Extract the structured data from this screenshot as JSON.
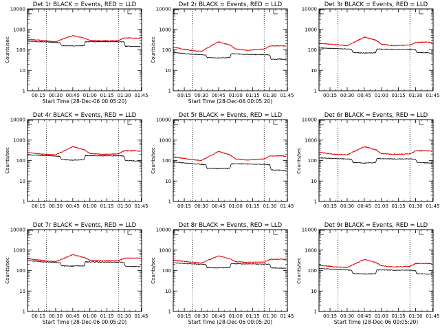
{
  "chart_data": [
    {
      "type": "line",
      "title": "Det 1r BLACK = Events, RED = LLD",
      "xlabel": "Start Time (28-Dec-06 00:05:20)",
      "ylabel": "Counts/sec",
      "ylog": true,
      "ylim": [
        1,
        10000
      ],
      "xlim_min": [
        5.33,
        105.33
      ],
      "yticks": [
        1,
        10,
        100,
        1000,
        10000
      ],
      "ytick_labels": [
        "1",
        "10",
        "100",
        "1000",
        "10000"
      ],
      "xticks_min": [
        15,
        30,
        45,
        60,
        75,
        90,
        105
      ],
      "xtick_labels": [
        "00:15",
        "00:30",
        "00:45",
        "01:00",
        "01:15",
        "01:30",
        "01:45"
      ],
      "dotted_lines_min": [
        22,
        85
      ],
      "series": [
        {
          "color": "#000000",
          "x_min": [
            5.33,
            20,
            30,
            34,
            35,
            45,
            55,
            56,
            70,
            86,
            90,
            91,
            104
          ],
          "y": [
            270,
            245,
            235,
            220,
            160,
            155,
            160,
            250,
            250,
            250,
            240,
            150,
            145
          ]
        },
        {
          "color": "#e00000",
          "x_min": [
            5.33,
            20,
            30,
            45,
            55,
            60,
            70,
            85,
            90,
            100,
            104
          ],
          "y": [
            330,
            280,
            250,
            500,
            380,
            290,
            280,
            280,
            380,
            380,
            360
          ]
        }
      ]
    },
    {
      "type": "line",
      "title": "Det 2r BLACK = Events, RED = LLD",
      "xlabel": "Start Time (28-Dec-06 00:05:20)",
      "ylabel": "Counts/sec",
      "ylog": true,
      "ylim": [
        1,
        10000
      ],
      "xlim_min": [
        5.33,
        105.33
      ],
      "yticks": [
        1,
        10,
        100,
        1000,
        10000
      ],
      "ytick_labels": [
        "1",
        "10",
        "100",
        "1000",
        "10000"
      ],
      "xticks_min": [
        15,
        30,
        45,
        60,
        75,
        90,
        105
      ],
      "xtick_labels": [
        "00:15",
        "00:30",
        "00:45",
        "01:00",
        "01:15",
        "01:30",
        "01:45"
      ],
      "dotted_lines_min": [
        22,
        85
      ],
      "series": [
        {
          "color": "#000000",
          "x_min": [
            5.33,
            20,
            30,
            34,
            35,
            45,
            55,
            56,
            70,
            86,
            90,
            91,
            104
          ],
          "y": [
            75,
            62,
            58,
            55,
            42,
            40,
            42,
            65,
            60,
            58,
            55,
            35,
            35
          ]
        },
        {
          "color": "#e00000",
          "x_min": [
            5.33,
            20,
            30,
            45,
            55,
            60,
            70,
            85,
            90,
            100,
            104
          ],
          "y": [
            135,
            95,
            85,
            250,
            170,
            110,
            95,
            110,
            155,
            160,
            155
          ]
        }
      ]
    },
    {
      "type": "line",
      "title": "Det 3r BLACK = Events, RED = LLD",
      "xlabel": "",
      "ylabel": "",
      "ylog": true,
      "ylim": [
        1,
        10000
      ],
      "xlim_min": [
        5.33,
        105.33
      ],
      "yticks": [
        1,
        10,
        100,
        1000,
        10000
      ],
      "ytick_labels": [
        "1",
        "10",
        "100",
        "1000",
        "10000"
      ],
      "xticks_min": [
        15,
        30,
        45,
        60,
        75,
        90,
        105
      ],
      "xtick_labels": [
        "00:15",
        "00:30",
        "00:45",
        "01:00",
        "01:15",
        "01:30",
        "01:45"
      ],
      "dotted_lines_min": [
        22,
        85
      ],
      "series": [
        {
          "color": "#000000",
          "x_min": [
            5.33,
            20,
            30,
            34,
            35,
            45,
            55,
            56,
            70,
            86,
            90,
            91,
            104
          ],
          "y": [
            125,
            115,
            110,
            105,
            75,
            70,
            72,
            110,
            105,
            105,
            100,
            75,
            70
          ]
        },
        {
          "color": "#e00000",
          "x_min": [
            5.33,
            20,
            30,
            45,
            55,
            60,
            70,
            85,
            90,
            100,
            104
          ],
          "y": [
            210,
            180,
            160,
            420,
            300,
            190,
            160,
            170,
            230,
            240,
            230
          ]
        }
      ]
    },
    {
      "type": "line",
      "title": "Det 4r BLACK = Events, RED = LLD",
      "xlabel": "",
      "ylabel": "Counts/sec",
      "ylog": true,
      "ylim": [
        1,
        10000
      ],
      "xlim_min": [
        5.33,
        105.33
      ],
      "yticks": [
        1,
        10,
        100,
        1000,
        10000
      ],
      "ytick_labels": [
        "1",
        "10",
        "100",
        "1000",
        "10000"
      ],
      "xticks_min": [
        15,
        30,
        45,
        60,
        75,
        90,
        105
      ],
      "xtick_labels": [
        "00:15",
        "00:30",
        "00:45",
        "01:00",
        "01:15",
        "01:30",
        "01:45"
      ],
      "dotted_lines_min": [
        22,
        85
      ],
      "series": [
        {
          "color": "#000000",
          "x_min": [
            5.33,
            20,
            30,
            34,
            35,
            45,
            55,
            56,
            70,
            86,
            90,
            91,
            104
          ],
          "y": [
            190,
            175,
            165,
            160,
            110,
            105,
            110,
            175,
            170,
            170,
            165,
            100,
            95
          ]
        },
        {
          "color": "#e00000",
          "x_min": [
            5.33,
            20,
            30,
            45,
            55,
            60,
            70,
            85,
            90,
            100,
            104
          ],
          "y": [
            250,
            200,
            190,
            480,
            340,
            220,
            200,
            210,
            300,
            300,
            285
          ]
        }
      ]
    },
    {
      "type": "line",
      "title": "Det 5r BLACK = Events, RED = LLD",
      "xlabel": "",
      "ylabel": "Counts/sec",
      "ylog": true,
      "ylim": [
        1,
        10000
      ],
      "xlim_min": [
        5.33,
        105.33
      ],
      "yticks": [
        1,
        10,
        100,
        1000,
        10000
      ],
      "ytick_labels": [
        "1",
        "10",
        "100",
        "1000",
        "10000"
      ],
      "xticks_min": [
        15,
        30,
        45,
        60,
        75,
        90,
        105
      ],
      "xtick_labels": [
        "00:15",
        "00:30",
        "00:45",
        "01:00",
        "01:15",
        "01:30",
        "01:45"
      ],
      "dotted_lines_min": [
        22,
        85
      ],
      "series": [
        {
          "color": "#000000",
          "x_min": [
            5.33,
            20,
            30,
            34,
            35,
            45,
            55,
            56,
            70,
            86,
            90,
            91,
            104
          ],
          "y": [
            85,
            72,
            65,
            62,
            42,
            40,
            42,
            70,
            68,
            65,
            62,
            35,
            33
          ]
        },
        {
          "color": "#e00000",
          "x_min": [
            5.33,
            20,
            30,
            45,
            55,
            60,
            70,
            85,
            90,
            100,
            104
          ],
          "y": [
            150,
            115,
            100,
            280,
            190,
            120,
            105,
            120,
            165,
            170,
            160
          ]
        }
      ]
    },
    {
      "type": "line",
      "title": "Det 6r BLACK = Events, RED = LLD",
      "xlabel": "",
      "ylabel": "Counts/sec",
      "ylog": true,
      "ylim": [
        1,
        10000
      ],
      "xlim_min": [
        5.33,
        105.33
      ],
      "yticks": [
        1,
        10,
        100,
        1000,
        10000
      ],
      "ytick_labels": [
        "1",
        "10",
        "100",
        "1000",
        "10000"
      ],
      "xticks_min": [
        15,
        30,
        45,
        60,
        75,
        90,
        105
      ],
      "xtick_labels": [
        "00:15",
        "00:30",
        "00:45",
        "01:00",
        "01:15",
        "01:30",
        "01:45"
      ],
      "dotted_lines_min": [
        22,
        85
      ],
      "series": [
        {
          "color": "#000000",
          "x_min": [
            5.33,
            20,
            30,
            34,
            35,
            45,
            55,
            56,
            70,
            86,
            90,
            91,
            104
          ],
          "y": [
            135,
            125,
            120,
            115,
            80,
            75,
            78,
            125,
            120,
            120,
            115,
            80,
            75
          ]
        },
        {
          "color": "#e00000",
          "x_min": [
            5.33,
            20,
            30,
            45,
            55,
            60,
            70,
            85,
            90,
            100,
            104
          ],
          "y": [
            250,
            200,
            190,
            480,
            340,
            220,
            200,
            210,
            300,
            300,
            285
          ]
        }
      ]
    },
    {
      "type": "line",
      "title": "Det 7r BLACK = Events, RED = LLD",
      "xlabel": "Start Time (28-Dec-06 00:05:20)",
      "ylabel": "Counts/sec",
      "ylog": true,
      "ylim": [
        1,
        10000
      ],
      "xlim_min": [
        5.33,
        105.33
      ],
      "yticks": [
        1,
        10,
        100,
        1000,
        10000
      ],
      "ytick_labels": [
        "1",
        "10",
        "100",
        "1000",
        "10000"
      ],
      "xticks_min": [
        15,
        30,
        45,
        60,
        75,
        90,
        105
      ],
      "xtick_labels": [
        "00:15",
        "00:30",
        "00:45",
        "01:00",
        "01:15",
        "01:30",
        "01:45"
      ],
      "dotted_lines_min": [
        22,
        85
      ],
      "series": [
        {
          "color": "#000000",
          "x_min": [
            5.33,
            20,
            30,
            34,
            35,
            45,
            55,
            56,
            70,
            86,
            90,
            91,
            104
          ],
          "y": [
            300,
            265,
            250,
            240,
            170,
            165,
            170,
            265,
            260,
            255,
            245,
            160,
            155
          ]
        },
        {
          "color": "#e00000",
          "x_min": [
            5.33,
            20,
            30,
            45,
            55,
            60,
            70,
            85,
            90,
            100,
            104
          ],
          "y": [
            380,
            300,
            270,
            600,
            430,
            320,
            300,
            300,
            400,
            410,
            390
          ]
        }
      ]
    },
    {
      "type": "line",
      "title": "Det 8r BLACK = Events, RED = LLD",
      "xlabel": "Start Time (28-Dec-06 00:05:20)",
      "ylabel": "Counts/sec",
      "ylog": true,
      "ylim": [
        1,
        10000
      ],
      "xlim_min": [
        5.33,
        105.33
      ],
      "yticks": [
        1,
        10,
        100,
        1000,
        10000
      ],
      "ytick_labels": [
        "1",
        "10",
        "100",
        "1000",
        "10000"
      ],
      "xticks_min": [
        15,
        30,
        45,
        60,
        75,
        90,
        105
      ],
      "xtick_labels": [
        "00:15",
        "00:30",
        "00:45",
        "01:00",
        "01:15",
        "01:30",
        "01:45"
      ],
      "dotted_lines_min": [
        22,
        85
      ],
      "series": [
        {
          "color": "#000000",
          "x_min": [
            5.33,
            20,
            30,
            34,
            35,
            45,
            55,
            56,
            70,
            86,
            90,
            91,
            104
          ],
          "y": [
            240,
            215,
            205,
            195,
            140,
            135,
            140,
            215,
            210,
            205,
            200,
            135,
            130
          ]
        },
        {
          "color": "#e00000",
          "x_min": [
            5.33,
            20,
            30,
            45,
            55,
            60,
            70,
            85,
            90,
            100,
            104
          ],
          "y": [
            320,
            260,
            235,
            520,
            370,
            270,
            250,
            260,
            350,
            360,
            340
          ]
        }
      ]
    },
    {
      "type": "line",
      "title": "Det 9r BLACK = Events, RED = LLD",
      "xlabel": "Start Time (28-Dec-06 00:05:20)",
      "ylabel": "Counts/sec",
      "ylog": true,
      "ylim": [
        1,
        10000
      ],
      "xlim_min": [
        5.33,
        105.33
      ],
      "yticks": [
        1,
        10,
        100,
        1000,
        10000
      ],
      "ytick_labels": [
        "1",
        "10",
        "100",
        "1000",
        "10000"
      ],
      "xticks_min": [
        15,
        30,
        45,
        60,
        75,
        90,
        105
      ],
      "xtick_labels": [
        "00:15",
        "00:30",
        "00:45",
        "01:00",
        "01:15",
        "01:30",
        "01:45"
      ],
      "dotted_lines_min": [
        22,
        85
      ],
      "series": [
        {
          "color": "#000000",
          "x_min": [
            5.33,
            20,
            30,
            34,
            35,
            45,
            55,
            56,
            70,
            86,
            90,
            91,
            104
          ],
          "y": [
            125,
            115,
            108,
            102,
            72,
            68,
            70,
            108,
            104,
            102,
            98,
            70,
            66
          ]
        },
        {
          "color": "#e00000",
          "x_min": [
            5.33,
            20,
            30,
            45,
            55,
            60,
            70,
            85,
            90,
            100,
            104
          ],
          "y": [
            180,
            150,
            140,
            350,
            250,
            170,
            150,
            160,
            220,
            225,
            215
          ]
        }
      ]
    }
  ]
}
